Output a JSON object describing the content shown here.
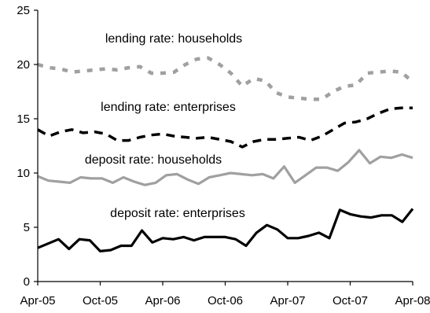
{
  "chart_data": {
    "type": "line",
    "title": "",
    "xlabel": "",
    "ylabel": "",
    "ylim": [
      0,
      25
    ],
    "yticks": [
      0,
      5,
      10,
      15,
      20,
      25
    ],
    "xlim": [
      0,
      36
    ],
    "xticks": [
      {
        "label": "Apr-05",
        "pos": 0
      },
      {
        "label": "Oct-05",
        "pos": 6
      },
      {
        "label": "Apr-06",
        "pos": 12
      },
      {
        "label": "Oct-06",
        "pos": 18
      },
      {
        "label": "Apr-07",
        "pos": 24
      },
      {
        "label": "Oct-07",
        "pos": 30
      },
      {
        "label": "Apr-08",
        "pos": 36
      }
    ],
    "grid": false,
    "legend": "none",
    "annotations": [
      {
        "text": "lending rate: households",
        "series": 0
      },
      {
        "text": "lending rate: enterprises",
        "series": 1
      },
      {
        "text": "deposit rate: households",
        "series": 2
      },
      {
        "text": "deposit rate: enterprises",
        "series": 3
      }
    ],
    "series": [
      {
        "color": "#a0a0a0",
        "style": "dotted",
        "values": [
          20.0,
          19.7,
          19.6,
          19.3,
          19.4,
          19.5,
          19.6,
          19.5,
          19.7,
          19.8,
          19.2,
          19.2,
          19.3,
          20.0,
          20.5,
          20.6,
          20.0,
          19.2,
          18.0,
          18.7,
          18.5,
          17.4,
          17.0,
          16.9,
          16.8,
          16.8,
          17.5,
          18.0,
          18.1,
          19.2,
          19.3,
          19.4,
          19.3,
          18.4
        ]
      },
      {
        "color": "#000000",
        "style": "dashed",
        "values": [
          14.0,
          13.4,
          13.8,
          14.0,
          13.7,
          13.8,
          13.6,
          13.0,
          13.0,
          13.3,
          13.5,
          13.6,
          13.4,
          13.3,
          13.2,
          13.3,
          13.1,
          12.9,
          12.4,
          12.9,
          13.1,
          13.1,
          13.2,
          13.3,
          13.0,
          13.4,
          14.0,
          14.6,
          14.7,
          15.0,
          15.5,
          15.9,
          16.0,
          16.0
        ]
      },
      {
        "color": "#a0a0a0",
        "style": "solid",
        "values": [
          9.7,
          9.3,
          9.2,
          9.1,
          9.6,
          9.5,
          9.5,
          9.1,
          9.6,
          9.2,
          8.9,
          9.1,
          9.8,
          9.9,
          9.4,
          9.0,
          9.6,
          9.8,
          10.0,
          9.9,
          9.8,
          9.9,
          9.5,
          10.6,
          9.1,
          9.8,
          10.5,
          10.5,
          10.2,
          11.0,
          12.1,
          10.9,
          11.5,
          11.4,
          11.7,
          11.4
        ]
      },
      {
        "color": "#000000",
        "style": "solid",
        "values": [
          3.1,
          3.5,
          3.9,
          3.0,
          3.9,
          3.8,
          2.8,
          2.9,
          3.3,
          3.3,
          4.7,
          3.6,
          4.0,
          3.9,
          4.1,
          3.8,
          4.1,
          4.1,
          4.1,
          3.9,
          3.3,
          4.5,
          5.2,
          4.8,
          4.0,
          4.0,
          4.2,
          4.5,
          4.0,
          6.6,
          6.2,
          6.0,
          5.9,
          6.1,
          6.1,
          5.5,
          6.7
        ]
      }
    ]
  }
}
